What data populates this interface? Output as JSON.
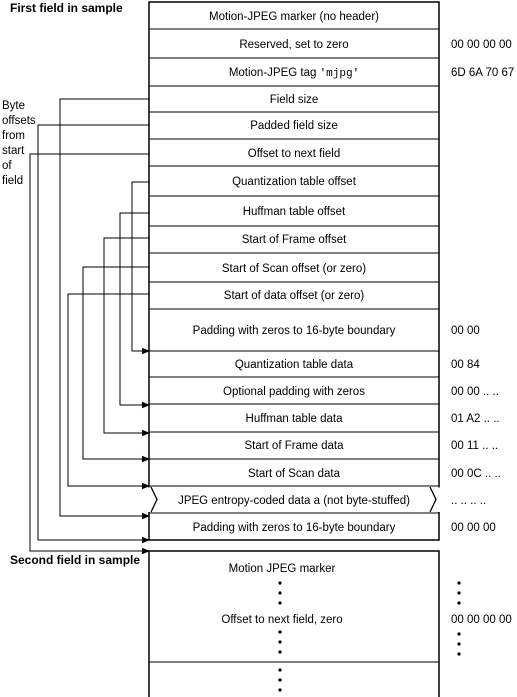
{
  "first_field": {
    "heading": "First field in sample",
    "rows": [
      {
        "label": "Motion-JPEG marker (no header)",
        "value": ""
      },
      {
        "label": "Reserved, set to zero",
        "value": "00 00 00 00"
      },
      {
        "label": "Motion-JPEG  tag ",
        "tag": "'mjpg'",
        "value": "6D 6A 70 67"
      },
      {
        "label": "Field size",
        "value": ""
      },
      {
        "label": "Padded field size",
        "value": ""
      },
      {
        "label": "Offset to next field",
        "value": ""
      },
      {
        "label": "Quantization table offset",
        "value": ""
      },
      {
        "label": "Huffman table offset",
        "value": ""
      },
      {
        "label": "Start of Frame offset",
        "value": ""
      },
      {
        "label": "Start of Scan offset (or zero)",
        "value": ""
      },
      {
        "label": "Start of data offset (or zero)",
        "value": ""
      },
      {
        "label": "Padding with zeros to 16-byte boundary",
        "value": "00 00"
      },
      {
        "label": "Quantization table data",
        "value": "00 84"
      },
      {
        "label": "Optional padding with zeros",
        "value": "00 00 .. .."
      },
      {
        "label": "Huffman table data",
        "value": "01 A2 .. .."
      },
      {
        "label": "Start of Frame data",
        "value": "00 11 .. .."
      },
      {
        "label": "Start of Scan data",
        "value": "00 0C .. .."
      },
      {
        "label": "JPEG entropy-coded data a (not byte-stuffed)",
        "value": ".. .. .. .."
      },
      {
        "label": "Padding with zeros to 16-byte boundary",
        "value": "00 00 00"
      }
    ]
  },
  "side_note": [
    "Byte",
    "offsets",
    "from",
    "start",
    "of",
    "field"
  ],
  "second_field": {
    "heading": "Second field in sample",
    "marker_label": "Motion JPEG marker",
    "offset_label": "Offset to next field, zero",
    "offset_value": "00 00 00 00"
  }
}
